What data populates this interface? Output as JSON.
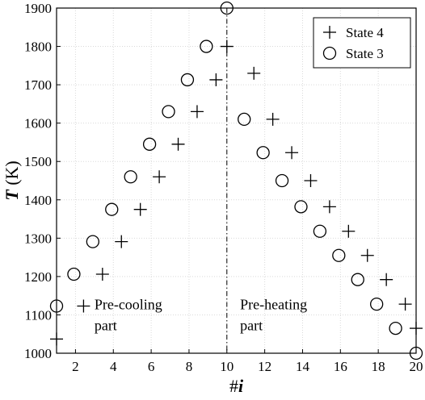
{
  "chart_data": {
    "type": "scatter",
    "xlabel_symbol": "#",
    "xlabel_var": "i",
    "ylabel_var": "T",
    "ylabel_unit": " (K)",
    "xlim": [
      1,
      20
    ],
    "ylim": [
      1000,
      1900
    ],
    "xticks": [
      2,
      4,
      6,
      8,
      10,
      12,
      14,
      16,
      18,
      20
    ],
    "yticks": [
      1000,
      1100,
      1200,
      1300,
      1400,
      1500,
      1600,
      1700,
      1800,
      1900
    ],
    "grid": true,
    "legend_position": "top-right",
    "series": [
      {
        "name": "State 4",
        "marker": "plus",
        "x": [
          1,
          2,
          3,
          4,
          5,
          6,
          7,
          8,
          9,
          10,
          11,
          12,
          13,
          14,
          15,
          16,
          17,
          18,
          19,
          20
        ],
        "y": [
          1037,
          1123,
          1206,
          1291,
          1375,
          1460,
          1545,
          1630,
          1713,
          1800,
          1730,
          1610,
          1523,
          1450,
          1382,
          1318,
          1255,
          1192,
          1128,
          1065
        ]
      },
      {
        "name": "State 3",
        "marker": "circle",
        "x": [
          1,
          2,
          3,
          4,
          5,
          6,
          7,
          8,
          9,
          10,
          11,
          12,
          13,
          14,
          15,
          16,
          17,
          18,
          19,
          20
        ],
        "y": [
          1123,
          1206,
          1291,
          1375,
          1460,
          1545,
          1630,
          1713,
          1800,
          1900,
          1610,
          1523,
          1450,
          1382,
          1318,
          1255,
          1192,
          1128,
          1065,
          1000
        ]
      }
    ],
    "divider_x": 10,
    "annotations": [
      {
        "lines": [
          "Pre-cooling",
          "part"
        ],
        "x": 3.0,
        "y": 1115
      },
      {
        "lines": [
          "Pre-heating",
          "part"
        ],
        "x": 10.7,
        "y": 1115
      }
    ]
  }
}
